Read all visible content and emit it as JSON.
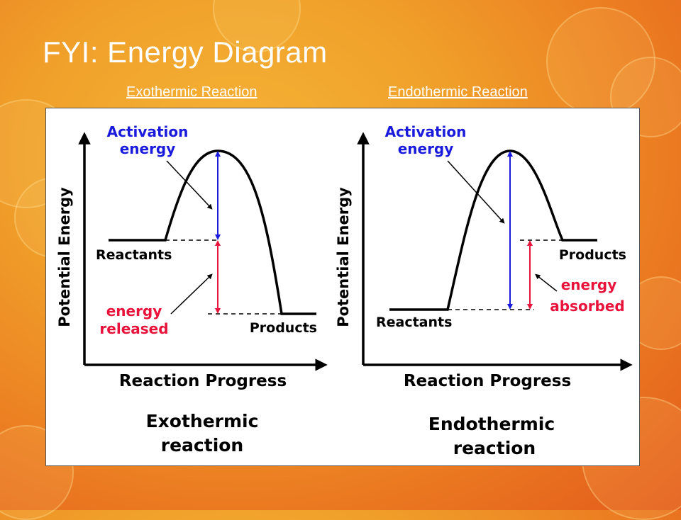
{
  "title": "FYI: Energy Diagram",
  "links": {
    "exothermic": "Exothermic Reaction",
    "endothermic": "Endothermic Reaction"
  },
  "colors": {
    "activation": "#1a1adc",
    "energy_change": "#e8123a",
    "curve": "#000000"
  },
  "exothermic": {
    "y_axis": "Potential Energy",
    "x_axis": "Reaction Progress",
    "activation_line1": "Activation",
    "activation_line2": "energy",
    "reactants": "Reactants",
    "products": "Products",
    "change_line1": "energy",
    "change_line2": "released",
    "caption_line1": "Exothermic",
    "caption_line2": "reaction"
  },
  "endothermic": {
    "y_axis": "Potential Energy",
    "x_axis": "Reaction Progress",
    "activation_line1": "Activation",
    "activation_line2": "energy",
    "reactants": "Reactants",
    "products": "Products",
    "change_line1": "energy",
    "change_line2": "absorbed",
    "caption_line1": "Endothermic",
    "caption_line2": "reaction"
  }
}
